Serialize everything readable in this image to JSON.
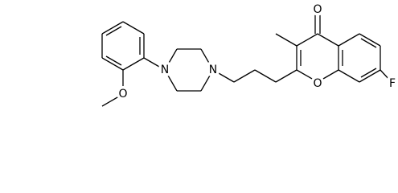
{
  "atoms": [
    {
      "label": "O"
    },
    {
      "label": "F"
    },
    {
      "label": "O"
    },
    {
      "label": "N"
    },
    {
      "label": "N"
    },
    {
      "label": "O"
    }
  ]
}
